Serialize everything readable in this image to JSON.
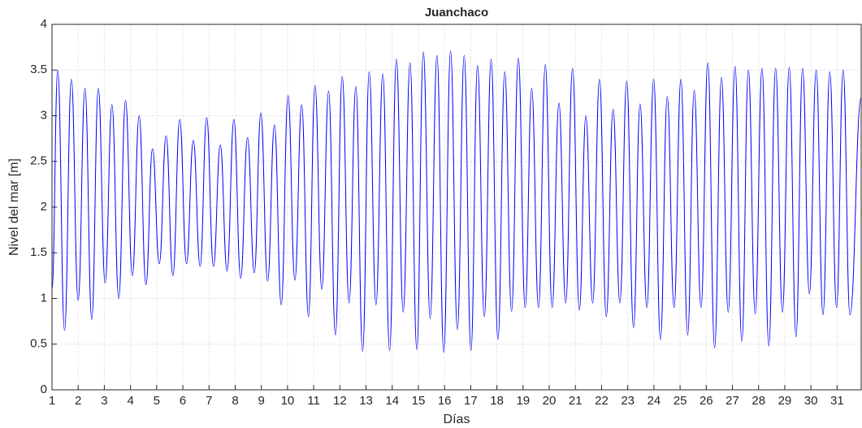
{
  "chart_data": {
    "type": "line",
    "title": "Juanchaco",
    "xlabel": "Días",
    "ylabel": "Nivel del mar [m]",
    "xlim": [
      1,
      31.92
    ],
    "ylim": [
      0,
      4
    ],
    "xticks": [
      1,
      2,
      3,
      4,
      5,
      6,
      7,
      8,
      9,
      10,
      11,
      12,
      13,
      14,
      15,
      16,
      17,
      18,
      19,
      20,
      21,
      22,
      23,
      24,
      25,
      26,
      27,
      28,
      29,
      30,
      31
    ],
    "yticks": [
      0,
      0.5,
      1,
      1.5,
      2,
      2.5,
      3,
      3.5,
      4
    ],
    "grid": true,
    "x": [
      1.0,
      1.22,
      1.48,
      1.74,
      2.0,
      2.26,
      2.52,
      2.77,
      3.03,
      3.29,
      3.55,
      3.81,
      4.07,
      4.33,
      4.59,
      4.84,
      5.1,
      5.36,
      5.62,
      5.88,
      6.14,
      6.4,
      6.66,
      6.91,
      7.17,
      7.43,
      7.69,
      7.95,
      8.21,
      8.47,
      8.73,
      8.98,
      9.24,
      9.5,
      9.76,
      10.02,
      10.28,
      10.54,
      10.8,
      11.05,
      11.31,
      11.57,
      11.83,
      12.09,
      12.35,
      12.61,
      12.87,
      13.12,
      13.38,
      13.64,
      13.9,
      14.16,
      14.42,
      14.68,
      14.94,
      15.19,
      15.45,
      15.71,
      15.97,
      16.23,
      16.49,
      16.75,
      17.01,
      17.26,
      17.52,
      17.78,
      18.04,
      18.3,
      18.56,
      18.82,
      19.08,
      19.33,
      19.59,
      19.85,
      20.11,
      20.37,
      20.63,
      20.89,
      21.15,
      21.4,
      21.66,
      21.92,
      22.18,
      22.44,
      22.7,
      22.96,
      23.22,
      23.47,
      23.73,
      23.99,
      24.25,
      24.51,
      24.77,
      25.03,
      25.29,
      25.54,
      25.8,
      26.06,
      26.32,
      26.58,
      26.84,
      27.1,
      27.36,
      27.61,
      27.87,
      28.13,
      28.39,
      28.65,
      28.91,
      29.17,
      29.43,
      29.68,
      29.94,
      30.2,
      30.46,
      30.72,
      30.98,
      31.23,
      31.49,
      31.92
    ],
    "series": [
      {
        "name": "Juanchaco",
        "color": "#0000ff",
        "values": [
          1.1,
          3.5,
          0.65,
          3.4,
          0.98,
          3.3,
          0.77,
          3.3,
          1.17,
          3.12,
          1.0,
          3.17,
          1.25,
          3.0,
          1.15,
          2.64,
          1.38,
          2.78,
          1.25,
          2.96,
          1.38,
          2.73,
          1.35,
          2.98,
          1.35,
          2.68,
          1.3,
          2.96,
          1.22,
          2.76,
          1.28,
          3.03,
          1.19,
          2.9,
          0.93,
          3.22,
          1.2,
          3.12,
          0.8,
          3.33,
          1.1,
          3.27,
          0.6,
          3.43,
          0.95,
          3.32,
          0.42,
          3.48,
          0.93,
          3.46,
          0.43,
          3.62,
          0.85,
          3.58,
          0.44,
          3.7,
          0.78,
          3.66,
          0.41,
          3.71,
          0.66,
          3.66,
          0.43,
          3.55,
          0.8,
          3.62,
          0.55,
          3.48,
          0.86,
          3.63,
          0.9,
          3.3,
          0.9,
          3.56,
          0.9,
          3.14,
          0.95,
          3.52,
          0.87,
          3.0,
          0.95,
          3.4,
          0.8,
          3.07,
          0.95,
          3.38,
          0.68,
          3.13,
          0.9,
          3.4,
          0.55,
          3.21,
          0.9,
          3.4,
          0.6,
          3.28,
          0.9,
          3.58,
          0.46,
          3.42,
          0.85,
          3.54,
          0.53,
          3.5,
          0.83,
          3.52,
          0.48,
          3.52,
          0.85,
          3.53,
          0.58,
          3.52,
          1.05,
          3.5,
          0.82,
          3.48,
          0.9,
          3.5,
          0.82,
          3.2
        ]
      }
    ]
  }
}
